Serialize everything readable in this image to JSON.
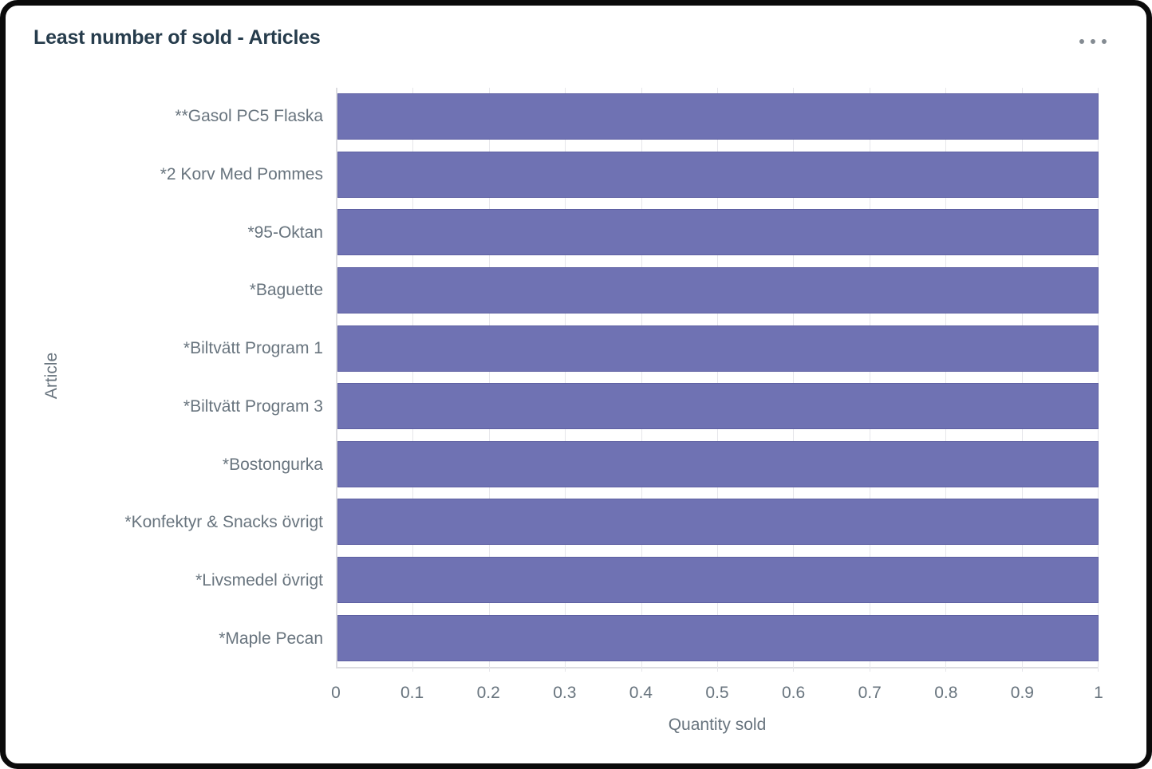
{
  "card": {
    "title": "Least number of sold - Articles",
    "menu_icon": "ellipsis-icon"
  },
  "colors": {
    "bar_fill": "#6f72b3",
    "bar_border": "#575a9e",
    "axis_line": "#dcdce0",
    "gridline": "#e6e6ea",
    "axis_text": "#68747e",
    "title_text": "#263c4c",
    "menu_dots": "#848b92"
  },
  "chart_data": {
    "type": "bar",
    "orientation": "horizontal",
    "title": "Least number of sold - Articles",
    "categories": [
      "**Gasol PC5 Flaska",
      "*2 Korv Med Pommes",
      "*95-Oktan",
      "*Baguette",
      "*Biltvätt Program 1",
      "*Biltvätt Program 3",
      "*Bostongurka",
      "*Konfektyr & Snacks övrigt",
      "*Livsmedel övrigt",
      "*Maple Pecan"
    ],
    "values": [
      1,
      1,
      1,
      1,
      1,
      1,
      1,
      1,
      1,
      1
    ],
    "xlabel": "Quantity sold",
    "ylabel": "Article",
    "xlim": [
      0,
      1
    ],
    "xticks": [
      "0",
      "0.1",
      "0.2",
      "0.3",
      "0.4",
      "0.5",
      "0.6",
      "0.7",
      "0.8",
      "0.9",
      "1"
    ],
    "grid": true,
    "legend": "none"
  }
}
